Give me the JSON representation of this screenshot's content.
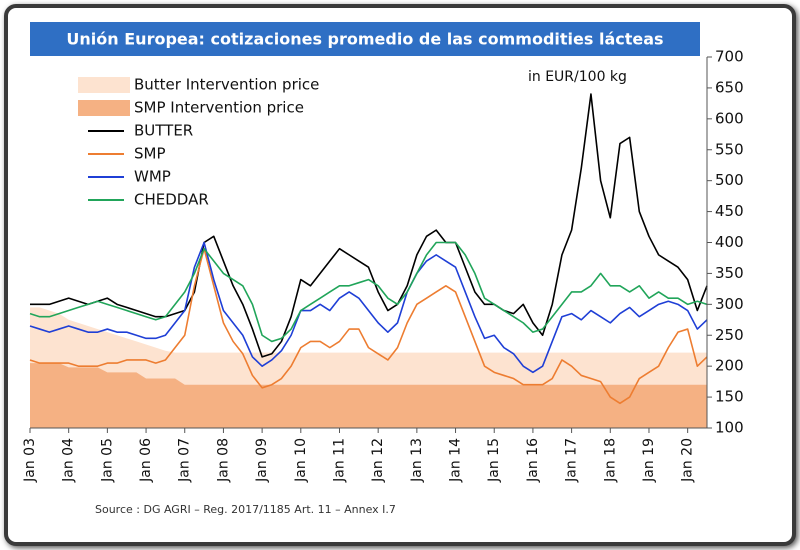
{
  "chart_data": {
    "type": "line",
    "title": "Unión Europea: cotizaciones promedio de las commodities lácteas",
    "annotation": "in EUR/100 kg",
    "source": "Source : DG AGRI – Reg. 2017/1185 Art. 11 – Annex I.7",
    "xlim": [
      2003,
      2020.5
    ],
    "xticks": [
      {
        "value": 2003,
        "label": "Jan 03"
      },
      {
        "value": 2004,
        "label": "Jan 04"
      },
      {
        "value": 2005,
        "label": "Jan 05"
      },
      {
        "value": 2006,
        "label": "Jan 06"
      },
      {
        "value": 2007,
        "label": "Jan 07"
      },
      {
        "value": 2008,
        "label": "Jan 08"
      },
      {
        "value": 2009,
        "label": "Jan 09"
      },
      {
        "value": 2010,
        "label": "Jan 10"
      },
      {
        "value": 2011,
        "label": "Jan 11"
      },
      {
        "value": 2012,
        "label": "Jan 12"
      },
      {
        "value": 2013,
        "label": "Jan 13"
      },
      {
        "value": 2014,
        "label": "Jan 14"
      },
      {
        "value": 2015,
        "label": "Jan 15"
      },
      {
        "value": 2016,
        "label": "Jan 16"
      },
      {
        "value": 2017,
        "label": "Jan 17"
      },
      {
        "value": 2018,
        "label": "Jan 18"
      },
      {
        "value": 2019,
        "label": "Jan 19"
      },
      {
        "value": 2020,
        "label": "Jan 20"
      }
    ],
    "ylim": [
      100,
      700
    ],
    "yticks": [
      100,
      150,
      200,
      250,
      300,
      350,
      400,
      450,
      500,
      550,
      600,
      650,
      700
    ],
    "x": [
      2003,
      2003.25,
      2003.5,
      2003.75,
      2004,
      2004.25,
      2004.5,
      2004.75,
      2005,
      2005.25,
      2005.5,
      2005.75,
      2006,
      2006.25,
      2006.5,
      2006.75,
      2007,
      2007.25,
      2007.5,
      2007.75,
      2008,
      2008.25,
      2008.5,
      2008.75,
      2009,
      2009.25,
      2009.5,
      2009.75,
      2010,
      2010.25,
      2010.5,
      2010.75,
      2011,
      2011.25,
      2011.5,
      2011.75,
      2012,
      2012.25,
      2012.5,
      2012.75,
      2013,
      2013.25,
      2013.5,
      2013.75,
      2014,
      2014.25,
      2014.5,
      2014.75,
      2015,
      2015.25,
      2015.5,
      2015.75,
      2016,
      2016.25,
      2016.5,
      2016.75,
      2017,
      2017.25,
      2017.5,
      2017.75,
      2018,
      2018.25,
      2018.5,
      2018.75,
      2019,
      2019.25,
      2019.5,
      2019.75,
      2020,
      2020.25,
      2020.5
    ],
    "series": [
      {
        "name": "Butter Intervention price",
        "kind": "area",
        "color": "#fde3d0",
        "values": [
          295,
          295,
          290,
          285,
          275,
          270,
          265,
          260,
          255,
          250,
          245,
          240,
          235,
          230,
          225,
          222,
          222,
          222,
          222,
          222,
          222,
          222,
          222,
          222,
          222,
          222,
          222,
          222,
          222,
          222,
          222,
          222,
          222,
          222,
          222,
          222,
          222,
          222,
          222,
          222,
          222,
          222,
          222,
          222,
          222,
          222,
          222,
          222,
          222,
          222,
          222,
          222,
          222,
          222,
          222,
          222,
          222,
          222,
          222,
          222,
          222,
          222,
          222,
          222,
          222,
          222,
          222,
          222,
          222,
          222,
          222
        ]
      },
      {
        "name": "SMP Intervention price",
        "kind": "area",
        "color": "#f5b183",
        "values": [
          205,
          205,
          205,
          205,
          198,
          198,
          198,
          198,
          190,
          190,
          190,
          190,
          180,
          180,
          180,
          180,
          170,
          170,
          170,
          170,
          170,
          170,
          170,
          170,
          170,
          170,
          170,
          170,
          170,
          170,
          170,
          170,
          170,
          170,
          170,
          170,
          170,
          170,
          170,
          170,
          170,
          170,
          170,
          170,
          170,
          170,
          170,
          170,
          170,
          170,
          170,
          170,
          170,
          170,
          170,
          170,
          170,
          170,
          170,
          170,
          170,
          170,
          170,
          170,
          170,
          170,
          170,
          170,
          170,
          170,
          170
        ]
      },
      {
        "name": "BUTTER",
        "kind": "line",
        "color": "#000000",
        "values": [
          300,
          300,
          300,
          305,
          310,
          305,
          300,
          305,
          310,
          300,
          295,
          290,
          285,
          280,
          280,
          285,
          290,
          320,
          400,
          410,
          370,
          330,
          300,
          260,
          215,
          220,
          240,
          280,
          340,
          330,
          350,
          370,
          390,
          380,
          370,
          360,
          320,
          290,
          300,
          330,
          380,
          410,
          420,
          400,
          400,
          360,
          320,
          300,
          300,
          290,
          285,
          300,
          270,
          250,
          300,
          380,
          420,
          520,
          640,
          500,
          440,
          560,
          570,
          450,
          410,
          380,
          370,
          360,
          340,
          290,
          330
        ]
      },
      {
        "name": "SMP",
        "kind": "line",
        "color": "#ed7d31",
        "values": [
          210,
          205,
          205,
          205,
          205,
          200,
          200,
          200,
          205,
          205,
          210,
          210,
          210,
          205,
          210,
          230,
          250,
          330,
          390,
          330,
          270,
          240,
          220,
          185,
          165,
          170,
          180,
          200,
          230,
          240,
          240,
          230,
          240,
          260,
          260,
          230,
          220,
          210,
          230,
          270,
          300,
          310,
          320,
          330,
          320,
          280,
          240,
          200,
          190,
          185,
          180,
          170,
          170,
          170,
          180,
          210,
          200,
          185,
          180,
          175,
          150,
          140,
          150,
          180,
          190,
          200,
          230,
          255,
          260,
          200,
          215
        ]
      },
      {
        "name": "WMP",
        "kind": "line",
        "color": "#1f3fd6",
        "values": [
          265,
          260,
          255,
          260,
          265,
          260,
          255,
          255,
          260,
          255,
          255,
          250,
          245,
          245,
          250,
          270,
          290,
          360,
          400,
          340,
          290,
          270,
          250,
          215,
          200,
          210,
          225,
          250,
          290,
          290,
          300,
          290,
          310,
          320,
          310,
          290,
          270,
          255,
          270,
          320,
          350,
          370,
          380,
          370,
          360,
          320,
          280,
          245,
          250,
          230,
          220,
          200,
          190,
          200,
          240,
          280,
          285,
          275,
          290,
          280,
          270,
          285,
          295,
          280,
          290,
          300,
          305,
          300,
          290,
          260,
          275
        ]
      },
      {
        "name": "CHEDDAR",
        "kind": "line",
        "color": "#21a55a",
        "values": [
          285,
          280,
          280,
          285,
          290,
          295,
          300,
          305,
          300,
          295,
          290,
          285,
          280,
          275,
          280,
          300,
          320,
          350,
          390,
          370,
          350,
          340,
          330,
          300,
          250,
          240,
          245,
          260,
          290,
          300,
          310,
          320,
          330,
          330,
          335,
          340,
          330,
          310,
          300,
          320,
          350,
          380,
          400,
          400,
          400,
          380,
          350,
          310,
          300,
          290,
          280,
          270,
          255,
          260,
          280,
          300,
          320,
          320,
          330,
          350,
          330,
          330,
          320,
          330,
          310,
          320,
          310,
          310,
          300,
          305,
          300
        ]
      }
    ]
  }
}
